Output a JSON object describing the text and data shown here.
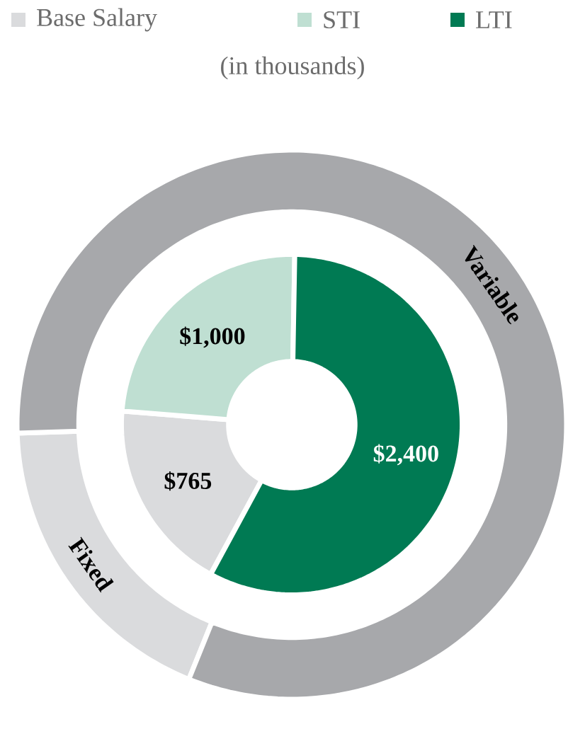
{
  "chart_data": [
    {
      "type": "donut",
      "subtitle": "(in thousands)",
      "categories": [
        "Base Salary",
        "STI",
        "LTI"
      ],
      "values": [
        765,
        1000,
        2400
      ],
      "colors": [
        "#dadbdd",
        "#bfdfd2",
        "#007a53"
      ],
      "value_labels": [
        "$765",
        "$1,000",
        "$2,400"
      ],
      "legend": "top"
    },
    {
      "type": "donut",
      "categories": [
        "Fixed",
        "Variable"
      ],
      "values": [
        18.4,
        81.6
      ],
      "colors": [
        "#dadbdd",
        "#a7a8ab"
      ]
    }
  ]
}
